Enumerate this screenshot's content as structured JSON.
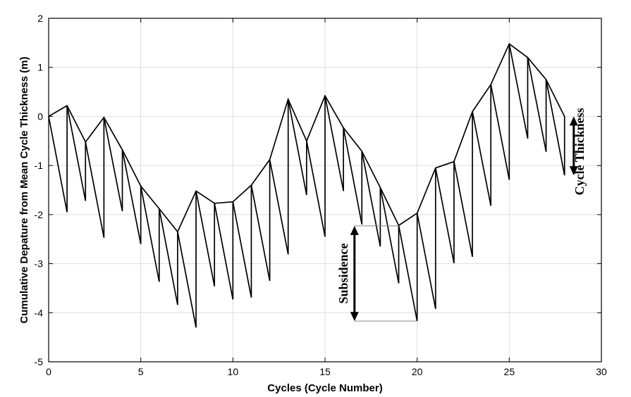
{
  "chart_data": {
    "type": "line",
    "title": "",
    "xlabel": "Cycles (Cycle Number)",
    "ylabel": "Cumulative Depature from Mean Cycle Thickness (m)",
    "xlim": [
      0,
      30
    ],
    "ylim": [
      -5,
      2
    ],
    "xticks": [
      0,
      5,
      10,
      15,
      20,
      25,
      30
    ],
    "yticks": [
      -5,
      -4,
      -3,
      -2,
      -1,
      0,
      1,
      2
    ],
    "xtick_labels": [
      "0",
      "5",
      "10",
      "15",
      "20",
      "25",
      "30"
    ],
    "ytick_labels": [
      "-5",
      "-4",
      "-3",
      "-2",
      "-1",
      "0",
      "1",
      "2"
    ],
    "grid": true,
    "legend": "none",
    "color": "#000000",
    "cycles": [
      {
        "x": 0,
        "top": 0.0,
        "bottom": 0.0
      },
      {
        "x": 1,
        "top": 0.22,
        "bottom": -1.95
      },
      {
        "x": 2,
        "top": -0.52,
        "bottom": -1.72
      },
      {
        "x": 3,
        "top": -0.02,
        "bottom": -2.47
      },
      {
        "x": 4,
        "top": -0.68,
        "bottom": -1.93
      },
      {
        "x": 5,
        "top": -1.42,
        "bottom": -2.6
      },
      {
        "x": 6,
        "top": -1.88,
        "bottom": -3.37
      },
      {
        "x": 7,
        "top": -2.35,
        "bottom": -3.84
      },
      {
        "x": 8,
        "top": -1.52,
        "bottom": -4.3
      },
      {
        "x": 9,
        "top": -1.77,
        "bottom": -3.46
      },
      {
        "x": 10,
        "top": -1.74,
        "bottom": -3.73
      },
      {
        "x": 11,
        "top": -1.4,
        "bottom": -3.69
      },
      {
        "x": 12,
        "top": -0.88,
        "bottom": -3.35
      },
      {
        "x": 13,
        "top": 0.35,
        "bottom": -2.81
      },
      {
        "x": 14,
        "top": -0.5,
        "bottom": -1.6
      },
      {
        "x": 15,
        "top": 0.42,
        "bottom": -2.45
      },
      {
        "x": 16,
        "top": -0.23,
        "bottom": -1.52
      },
      {
        "x": 17,
        "top": -0.71,
        "bottom": -2.2
      },
      {
        "x": 18,
        "top": -1.45,
        "bottom": -2.65
      },
      {
        "x": 19,
        "top": -2.22,
        "bottom": -3.4
      },
      {
        "x": 20,
        "top": -1.97,
        "bottom": -4.17
      },
      {
        "x": 21,
        "top": -1.05,
        "bottom": -3.92
      },
      {
        "x": 22,
        "top": -0.92,
        "bottom": -2.99
      },
      {
        "x": 23,
        "top": 0.1,
        "bottom": -2.86
      },
      {
        "x": 24,
        "top": 0.65,
        "bottom": -1.82
      },
      {
        "x": 25,
        "top": 1.48,
        "bottom": -1.29
      },
      {
        "x": 26,
        "top": 1.2,
        "bottom": -0.45
      },
      {
        "x": 27,
        "top": 0.75,
        "bottom": -0.72
      },
      {
        "x": 28,
        "top": 0.0,
        "bottom": -1.2
      }
    ],
    "annotations": [
      {
        "text": "Subsidence",
        "x": 16.6,
        "y_top": -2.23,
        "y_bottom": -4.17,
        "from_x": 19,
        "to_x": 20
      },
      {
        "text": "Cycle Thickness",
        "x": 28.5,
        "y_top": 0.0,
        "y_bottom": -1.2
      }
    ]
  }
}
